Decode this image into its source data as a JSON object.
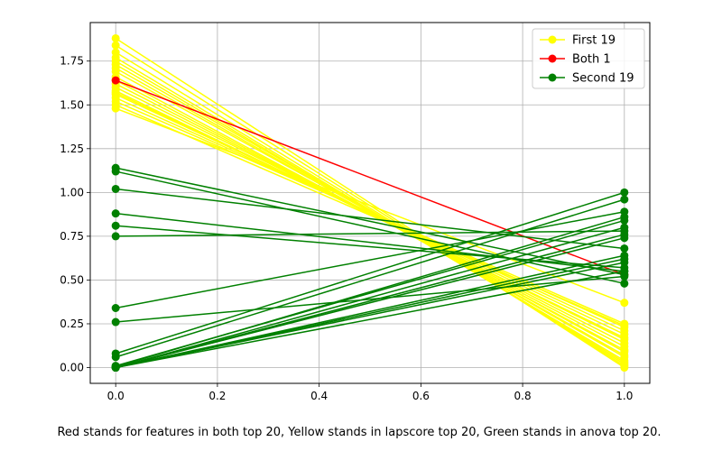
{
  "caption": "Red stands for features in both top 20, Yellow stands in lapscore top 20, Green stands in anova top 20.",
  "chart_data": {
    "type": "line",
    "title": "",
    "xlabel": "",
    "ylabel": "",
    "xlim": [
      -0.05,
      1.05
    ],
    "ylim": [
      -0.09,
      1.97
    ],
    "x": [
      0.0,
      1.0
    ],
    "x_ticks": [
      "0.0",
      "0.2",
      "0.4",
      "0.6",
      "0.8",
      "1.0"
    ],
    "y_ticks": [
      "0.00",
      "0.25",
      "0.50",
      "0.75",
      "1.00",
      "1.25",
      "1.50",
      "1.75"
    ],
    "grid": true,
    "legend_position": "top-right",
    "series_groups": [
      {
        "name": "First 19",
        "color": "#ffff00",
        "lines": [
          [
            1.88,
            0.0
          ],
          [
            1.84,
            0.01
          ],
          [
            1.8,
            0.02
          ],
          [
            1.77,
            0.03
          ],
          [
            1.75,
            0.04
          ],
          [
            1.73,
            0.06
          ],
          [
            1.71,
            0.07
          ],
          [
            1.69,
            0.09
          ],
          [
            1.66,
            0.1
          ],
          [
            1.64,
            0.12
          ],
          [
            1.62,
            0.14
          ],
          [
            1.6,
            0.16
          ],
          [
            1.58,
            0.17
          ],
          [
            1.57,
            0.19
          ],
          [
            1.56,
            0.21
          ],
          [
            1.54,
            0.23
          ],
          [
            1.52,
            0.25
          ],
          [
            1.5,
            0.24
          ],
          [
            1.48,
            0.37
          ]
        ]
      },
      {
        "name": "Both 1",
        "color": "#ff0000",
        "lines": [
          [
            1.64,
            0.53
          ]
        ]
      },
      {
        "name": "Second 19",
        "color": "#008000",
        "lines": [
          [
            1.14,
            0.53
          ],
          [
            1.12,
            0.48
          ],
          [
            1.02,
            0.68
          ],
          [
            0.88,
            0.55
          ],
          [
            0.81,
            0.57
          ],
          [
            0.75,
            0.78
          ],
          [
            0.34,
            0.89
          ],
          [
            0.26,
            0.52
          ],
          [
            0.08,
            1.0
          ],
          [
            0.06,
            0.96
          ],
          [
            0.01,
            0.84
          ],
          [
            0.005,
            0.86
          ],
          [
            0.0,
            0.8
          ],
          [
            0.0,
            0.76
          ],
          [
            0.0,
            0.74
          ],
          [
            0.0,
            0.64
          ],
          [
            0.0,
            0.62
          ],
          [
            0.0,
            0.6
          ],
          [
            0.0,
            0.55
          ]
        ]
      }
    ]
  }
}
